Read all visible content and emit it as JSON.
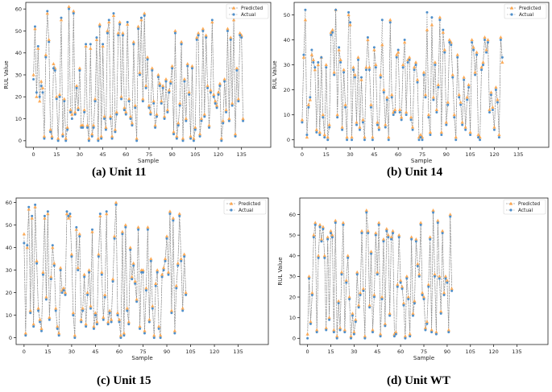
{
  "colors": {
    "predicted": "#ffa54a",
    "actual": "#4f8fca",
    "line": "#a0a0a0"
  },
  "legend": {
    "predicted": "Predicted",
    "actual": "Actual"
  },
  "chart_data": [
    {
      "type": "line",
      "caption": "(a) Unit 11",
      "xlabel": "Sample",
      "ylabel": "RUL Value",
      "xlim": [
        -5,
        154
      ],
      "ylim": [
        -3,
        63
      ],
      "xticks": [
        0,
        15,
        30,
        45,
        60,
        75,
        90,
        105,
        120,
        135
      ],
      "yticks": [
        0,
        10,
        20,
        30,
        40,
        50,
        60
      ],
      "legend_position": "top-right",
      "series": [
        {
          "name": "Predicted",
          "values": [
            30,
            51,
            20,
            42,
            18,
            27,
            24,
            2,
            39,
            58,
            46,
            5,
            2,
            35,
            33,
            20,
            1,
            21,
            55,
            3,
            19,
            1,
            6,
            61,
            14,
            12,
            59,
            13,
            25,
            15,
            33,
            7,
            7,
            14,
            43,
            7,
            1,
            42,
            3,
            7,
            19,
            46,
            1,
            53,
            2,
            43,
            11,
            6,
            50,
            54,
            11,
            2,
            57,
            5,
            13,
            49,
            54,
            20,
            49,
            15,
            13,
            53,
            19,
            11,
            8,
            45,
            16,
            1,
            52,
            31,
            55,
            19,
            58,
            25,
            38,
            16,
            13,
            33,
            18,
            7,
            12,
            30,
            26,
            18,
            25,
            11,
            28,
            14,
            23,
            27,
            34,
            4,
            50,
            2,
            8,
            17,
            45,
            1,
            28,
            10,
            35,
            22,
            2,
            34,
            1,
            6,
            47,
            49,
            3,
            10,
            51,
            12,
            48,
            25,
            7,
            23,
            54,
            21,
            18,
            16,
            22,
            26,
            1,
            9,
            28,
            14,
            51,
            10,
            47,
            17,
            55,
            3,
            33,
            19,
            49,
            48,
            10
          ]
        },
        {
          "name": "Actual",
          "values": [
            28,
            52,
            22,
            43,
            20,
            25,
            22,
            1,
            38,
            59,
            45,
            4,
            1,
            33,
            32,
            19,
            0,
            20,
            56,
            2,
            18,
            0,
            5,
            60,
            13,
            10,
            58,
            12,
            24,
            14,
            32,
            6,
            6,
            13,
            44,
            6,
            0,
            44,
            2,
            6,
            18,
            47,
            0,
            52,
            1,
            44,
            10,
            5,
            49,
            55,
            10,
            1,
            58,
            4,
            12,
            48,
            53,
            19,
            48,
            14,
            12,
            54,
            18,
            10,
            7,
            44,
            15,
            0,
            51,
            30,
            56,
            18,
            57,
            24,
            37,
            15,
            12,
            32,
            17,
            6,
            11,
            29,
            25,
            17,
            24,
            10,
            27,
            13,
            22,
            26,
            33,
            3,
            49,
            1,
            7,
            16,
            44,
            0,
            27,
            9,
            34,
            21,
            1,
            33,
            0,
            5,
            46,
            48,
            2,
            9,
            50,
            11,
            47,
            24,
            6,
            22,
            55,
            20,
            17,
            15,
            21,
            25,
            0,
            8,
            27,
            13,
            50,
            9,
            46,
            16,
            56,
            2,
            32,
            18,
            48,
            47,
            9
          ]
        }
      ]
    },
    {
      "type": "line",
      "caption": "(b) Unit 14",
      "xlabel": "Sample",
      "ylabel": "RUL Value",
      "xlim": [
        -5,
        154
      ],
      "ylim": [
        -3,
        55
      ],
      "xticks": [
        0,
        15,
        30,
        45,
        60,
        75,
        90,
        105,
        120,
        135
      ],
      "yticks": [
        0,
        10,
        20,
        30,
        40,
        50
      ],
      "legend_position": "top-right",
      "series": [
        {
          "name": "Predicted",
          "values": [
            8,
            33,
            48,
            1,
            14,
            16,
            34,
            32,
            28,
            4,
            30,
            3,
            33,
            10,
            2,
            30,
            1,
            6,
            43,
            44,
            27,
            52,
            10,
            36,
            32,
            5,
            28,
            14,
            1,
            50,
            46,
            1,
            29,
            26,
            7,
            33,
            5,
            24,
            8,
            1,
            29,
            40,
            29,
            14,
            1,
            36,
            30,
            7,
            5,
            26,
            38,
            20,
            6,
            17,
            1,
            48,
            18,
            11,
            12,
            34,
            35,
            12,
            9,
            30,
            39,
            11,
            32,
            33,
            9,
            5,
            29,
            31,
            24,
            1,
            2,
            1,
            27,
            18,
            44,
            10,
            3,
            46,
            17,
            31,
            12,
            22,
            49,
            3,
            43,
            36,
            7,
            15,
            40,
            39,
            26,
            10,
            1,
            34,
            18,
            15,
            7,
            25,
            5,
            17,
            22,
            3,
            40,
            37,
            27,
            35,
            2,
            1,
            29,
            31,
            41,
            36,
            40,
            12,
            19,
            13,
            5,
            21,
            16,
            2,
            41,
            31
          ]
        },
        {
          "name": "Actual",
          "values": [
            7,
            34,
            52,
            2,
            13,
            17,
            36,
            31,
            29,
            3,
            31,
            2,
            33,
            9,
            1,
            29,
            0,
            5,
            42,
            43,
            26,
            52,
            9,
            37,
            31,
            4,
            27,
            13,
            0,
            51,
            47,
            0,
            28,
            25,
            6,
            32,
            4,
            25,
            7,
            0,
            28,
            41,
            28,
            13,
            0,
            37,
            29,
            6,
            4,
            25,
            48,
            19,
            5,
            16,
            0,
            47,
            17,
            10,
            11,
            33,
            36,
            11,
            8,
            29,
            40,
            10,
            31,
            32,
            8,
            4,
            28,
            30,
            23,
            0,
            1,
            0,
            26,
            17,
            51,
            9,
            2,
            49,
            16,
            30,
            11,
            21,
            48,
            2,
            44,
            35,
            6,
            14,
            39,
            38,
            25,
            9,
            0,
            33,
            17,
            14,
            6,
            24,
            4,
            16,
            21,
            2,
            39,
            36,
            26,
            34,
            1,
            0,
            28,
            30,
            40,
            35,
            39,
            11,
            18,
            12,
            4,
            20,
            15,
            1,
            40,
            33
          ]
        }
      ]
    },
    {
      "type": "line",
      "caption": "(c) Unit 15",
      "xlabel": "Sample",
      "ylabel": "RUL Value",
      "xlim": [
        -5,
        154
      ],
      "ylim": [
        -3,
        62
      ],
      "xticks": [
        0,
        15,
        30,
        45,
        60,
        75,
        90,
        105,
        120,
        135
      ],
      "yticks": [
        0,
        10,
        20,
        30,
        40,
        50,
        60
      ],
      "legend_position": "top-right",
      "series": [
        {
          "name": "Predicted",
          "values": [
            46,
            2,
            40,
            57,
            12,
            53,
            6,
            58,
            34,
            13,
            8,
            4,
            29,
            53,
            18,
            55,
            9,
            27,
            40,
            33,
            13,
            5,
            2,
            31,
            21,
            22,
            20,
            55,
            53,
            54,
            37,
            11,
            1,
            48,
            31,
            46,
            8,
            13,
            28,
            6,
            20,
            30,
            14,
            47,
            5,
            11,
            7,
            37,
            54,
            29,
            9,
            19,
            55,
            7,
            12,
            8,
            26,
            45,
            60,
            11,
            8,
            1,
            47,
            2,
            50,
            13,
            7,
            40,
            27,
            33,
            25,
            17,
            49,
            5,
            30,
            30,
            3,
            22,
            49,
            8,
            35,
            14,
            1,
            24,
            30,
            5,
            1,
            28,
            31,
            35,
            45,
            29,
            56,
            12,
            53,
            3,
            23,
            33,
            55,
            35,
            13,
            37,
            20
          ]
        },
        {
          "name": "Actual",
          "values": [
            42,
            1,
            41,
            58,
            11,
            54,
            5,
            59,
            33,
            12,
            7,
            3,
            28,
            54,
            17,
            56,
            8,
            26,
            41,
            32,
            12,
            4,
            1,
            30,
            20,
            21,
            19,
            56,
            54,
            55,
            36,
            10,
            0,
            49,
            30,
            45,
            7,
            12,
            27,
            5,
            19,
            29,
            13,
            48,
            4,
            10,
            6,
            36,
            55,
            28,
            8,
            18,
            56,
            6,
            11,
            7,
            25,
            44,
            59,
            10,
            7,
            0,
            46,
            1,
            49,
            12,
            6,
            39,
            26,
            32,
            24,
            16,
            48,
            4,
            29,
            29,
            2,
            21,
            48,
            7,
            34,
            13,
            0,
            23,
            29,
            4,
            0,
            27,
            30,
            34,
            44,
            28,
            55,
            11,
            52,
            2,
            22,
            32,
            54,
            34,
            12,
            36,
            19
          ]
        }
      ]
    },
    {
      "type": "line",
      "caption": "(d) Unit WT",
      "xlabel": "Sample",
      "ylabel": "RUL Value",
      "xlim": [
        -5,
        155
      ],
      "ylim": [
        -3,
        68
      ],
      "xticks": [
        0,
        15,
        30,
        45,
        60,
        75,
        90,
        105,
        120,
        135
      ],
      "yticks": [
        0,
        10,
        20,
        30,
        40,
        50,
        60
      ],
      "legend_position": "top-right",
      "series": [
        {
          "name": "Predicted",
          "values": [
            2,
            30,
            8,
            22,
            50,
            56,
            4,
            40,
            55,
            48,
            54,
            40,
            5,
            49,
            10,
            52,
            50,
            4,
            57,
            1,
            18,
            5,
            32,
            56,
            4,
            28,
            40,
            20,
            1,
            12,
            3,
            9,
            32,
            16,
            22,
            52,
            24,
            1,
            62,
            52,
            16,
            42,
            4,
            21,
            51,
            32,
            56,
            2,
            20,
            48,
            7,
            53,
            50,
            12,
            49,
            52,
            2,
            3,
            26,
            50,
            28,
            25,
            17,
            1,
            30,
            20,
            2,
            49,
            12,
            18,
            48,
            36,
            31,
            56,
            22,
            20,
            5,
            8,
            26,
            49,
            4,
            62,
            31,
            3,
            57,
            30,
            13,
            52,
            22,
            30,
            28,
            4,
            60,
            24
          ]
        },
        {
          "name": "Actual",
          "values": [
            0,
            29,
            7,
            21,
            49,
            55,
            3,
            39,
            54,
            47,
            53,
            39,
            4,
            48,
            9,
            51,
            49,
            3,
            56,
            0,
            17,
            4,
            31,
            55,
            3,
            27,
            39,
            19,
            0,
            11,
            2,
            8,
            31,
            15,
            21,
            51,
            23,
            0,
            61,
            51,
            15,
            41,
            3,
            20,
            50,
            31,
            55,
            1,
            19,
            47,
            6,
            52,
            49,
            11,
            48,
            51,
            1,
            2,
            25,
            49,
            27,
            24,
            16,
            0,
            29,
            19,
            1,
            48,
            11,
            17,
            47,
            35,
            30,
            55,
            21,
            19,
            4,
            7,
            25,
            48,
            3,
            61,
            30,
            2,
            56,
            29,
            12,
            51,
            21,
            29,
            27,
            3,
            59,
            23
          ]
        }
      ]
    }
  ]
}
